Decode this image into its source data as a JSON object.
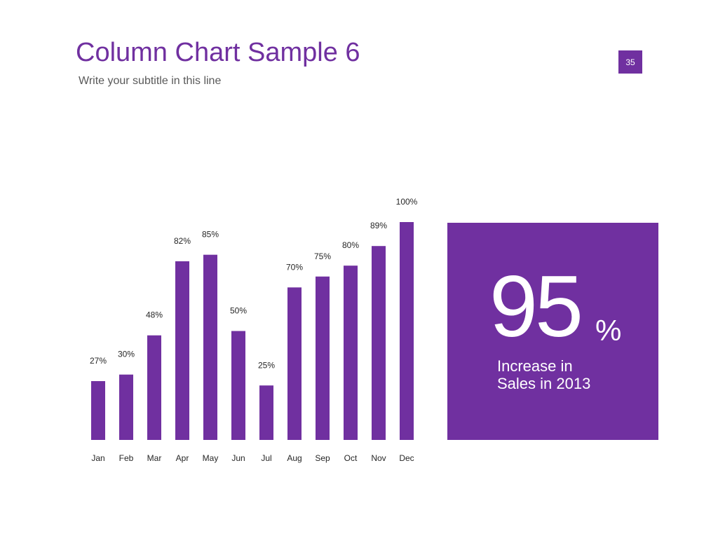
{
  "slide": {
    "title": "Column Chart Sample 6",
    "subtitle": "Write your subtitle in this line",
    "page_number": "35"
  },
  "callout": {
    "value": "95",
    "unit": "%",
    "caption_line1": "Increase in",
    "caption_line2": "Sales in 2013"
  },
  "colors": {
    "accent": "#7030a0",
    "label": "#262626"
  },
  "chart_data": {
    "type": "bar",
    "categories": [
      "Jan",
      "Feb",
      "Mar",
      "Apr",
      "May",
      "Jun",
      "Jul",
      "Aug",
      "Sep",
      "Oct",
      "Nov",
      "Dec"
    ],
    "values": [
      27,
      30,
      48,
      82,
      85,
      50,
      25,
      70,
      75,
      80,
      89,
      100
    ],
    "value_labels": [
      "27%",
      "30%",
      "48%",
      "82%",
      "85%",
      "50%",
      "25%",
      "70%",
      "75%",
      "80%",
      "89%",
      "100%"
    ],
    "ylim": [
      0,
      100
    ],
    "grid": false,
    "legend": "none"
  }
}
